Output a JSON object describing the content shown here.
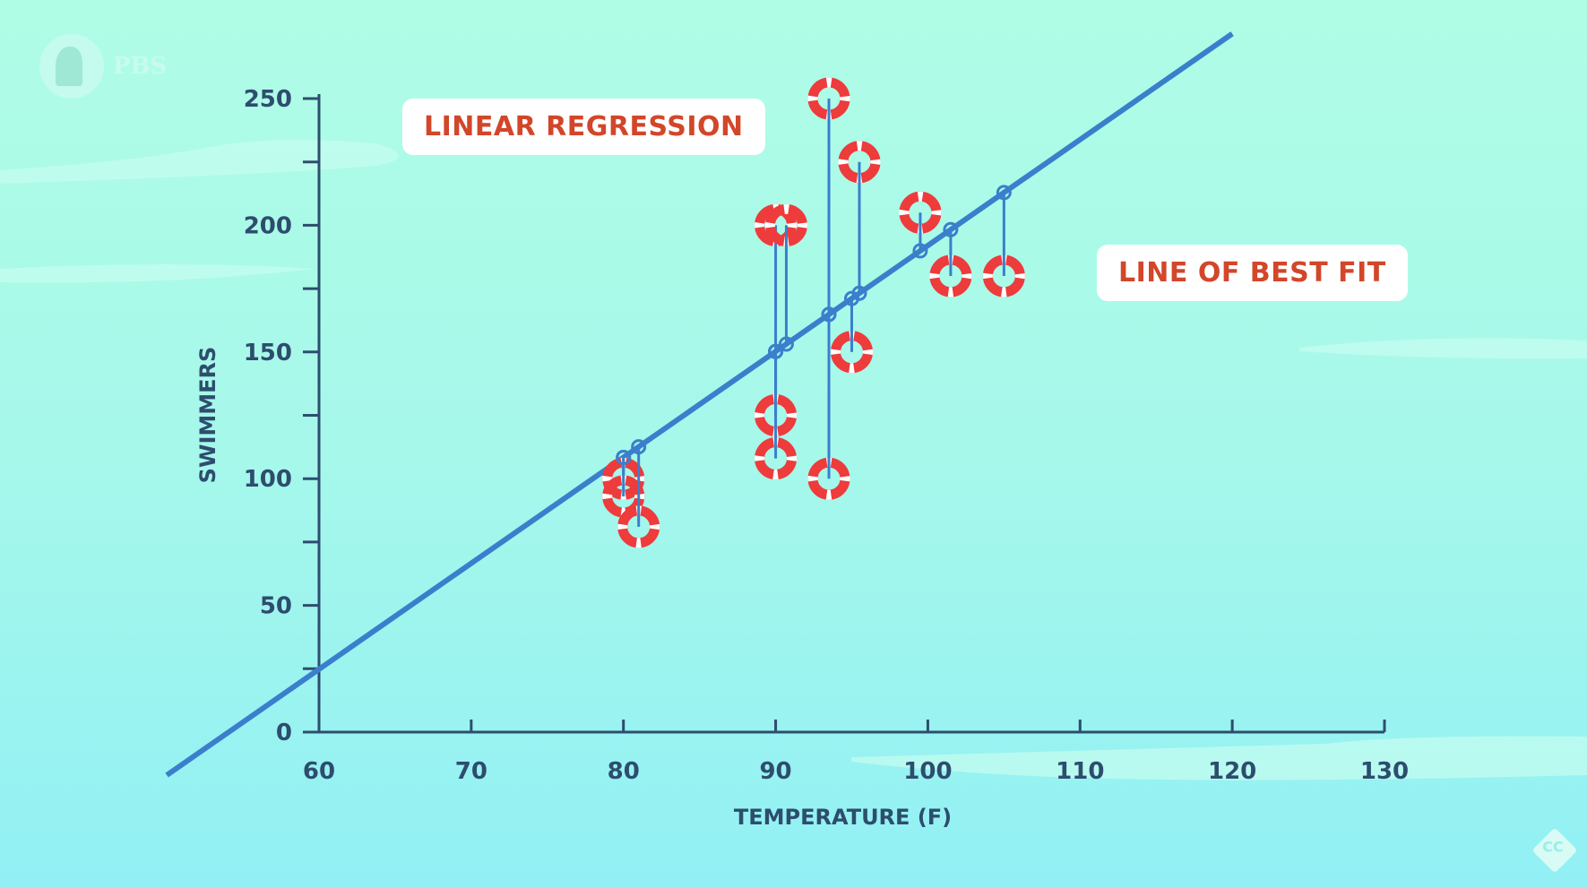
{
  "logo": {
    "text": "PBS",
    "cc": "CC"
  },
  "labels": {
    "title": "LINEAR REGRESSION",
    "line": "LINE OF BEST FIT"
  },
  "chart_data": {
    "type": "scatter",
    "title": "LINEAR REGRESSION",
    "xlabel": "TEMPERATURE (F)",
    "ylabel": "SWIMMERS",
    "xlim": [
      60,
      130
    ],
    "ylim": [
      0,
      250
    ],
    "xticks": [
      60,
      70,
      80,
      90,
      100,
      110,
      120,
      130
    ],
    "yticks": [
      0,
      50,
      100,
      150,
      200,
      250
    ],
    "points": [
      [
        80,
        100
      ],
      [
        80,
        93
      ],
      [
        81,
        81
      ],
      [
        90,
        200
      ],
      [
        90.7,
        200
      ],
      [
        90,
        125
      ],
      [
        90,
        108
      ],
      [
        93.5,
        250
      ],
      [
        93.5,
        100
      ],
      [
        95.5,
        225
      ],
      [
        95,
        150
      ],
      [
        99.5,
        205
      ],
      [
        101.5,
        180
      ],
      [
        105,
        180
      ]
    ],
    "fit": {
      "label": "LINE OF BEST FIT",
      "slope": 4.18,
      "intercept": -226
    },
    "colors": {
      "line": "#3a7fcc",
      "ring": "#ee3b3b",
      "axis": "#2d4d6e"
    }
  }
}
